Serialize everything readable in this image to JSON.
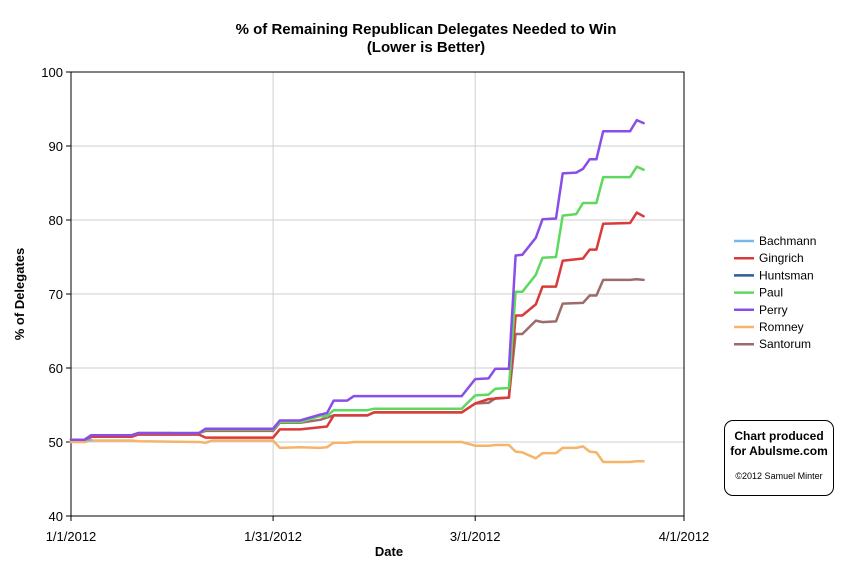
{
  "chart_data": {
    "type": "line",
    "title": "% of Remaining Republican Delegates Needed to Win",
    "subtitle": "(Lower is Better)",
    "xlabel": "Date",
    "ylabel": "% of Delegates",
    "xlim": [
      "2012-01-01",
      "2012-04-01"
    ],
    "ylim": [
      40,
      100
    ],
    "xticks": [
      "1/1/2012",
      "1/31/2012",
      "3/1/2012",
      "4/1/2012"
    ],
    "yticks": [
      40,
      50,
      60,
      70,
      80,
      90,
      100
    ],
    "grid": "vertical and horizontal at major ticks",
    "legend_position": "right",
    "series": [
      {
        "name": "Bachmann",
        "color": "#7cb7e8",
        "points": [
          [
            "2012-01-01",
            50.3
          ],
          [
            "2012-01-04",
            50.3
          ]
        ]
      },
      {
        "name": "Gingrich",
        "color": "#d93a3a",
        "points": [
          [
            "2012-01-01",
            50.3
          ],
          [
            "2012-01-03",
            50.3
          ],
          [
            "2012-01-04",
            50.7
          ],
          [
            "2012-01-10",
            50.7
          ],
          [
            "2012-01-11",
            51.0
          ],
          [
            "2012-01-20",
            51.0
          ],
          [
            "2012-01-21",
            50.6
          ],
          [
            "2012-01-31",
            50.6
          ],
          [
            "2012-02-01",
            51.7
          ],
          [
            "2012-02-04",
            51.7
          ],
          [
            "2012-02-07",
            52.0
          ],
          [
            "2012-02-08",
            52.1
          ],
          [
            "2012-02-09",
            53.6
          ],
          [
            "2012-02-14",
            53.6
          ],
          [
            "2012-02-15",
            54.0
          ],
          [
            "2012-02-28",
            54.0
          ],
          [
            "2012-03-01",
            55.2
          ],
          [
            "2012-03-03",
            55.8
          ],
          [
            "2012-03-06",
            56.0
          ],
          [
            "2012-03-07",
            67.1
          ],
          [
            "2012-03-08",
            67.1
          ],
          [
            "2012-03-10",
            68.6
          ],
          [
            "2012-03-11",
            71.0
          ],
          [
            "2012-03-13",
            71.0
          ],
          [
            "2012-03-14",
            74.5
          ],
          [
            "2012-03-17",
            74.8
          ],
          [
            "2012-03-18",
            76.0
          ],
          [
            "2012-03-19",
            76.0
          ],
          [
            "2012-03-20",
            79.5
          ],
          [
            "2012-03-24",
            79.6
          ],
          [
            "2012-03-25",
            81.0
          ],
          [
            "2012-03-26",
            80.5
          ]
        ]
      },
      {
        "name": "Huntsman",
        "color": "#2e5d8c",
        "points": [
          [
            "2012-01-01",
            50.3
          ],
          [
            "2012-01-03",
            50.3
          ],
          [
            "2012-01-04",
            50.9
          ],
          [
            "2012-01-10",
            50.9
          ],
          [
            "2012-01-11",
            51.2
          ],
          [
            "2012-01-16",
            51.2
          ]
        ]
      },
      {
        "name": "Paul",
        "color": "#5fd85f",
        "points": [
          [
            "2012-01-01",
            50.3
          ],
          [
            "2012-01-03",
            50.3
          ],
          [
            "2012-01-04",
            50.9
          ],
          [
            "2012-01-10",
            50.9
          ],
          [
            "2012-01-11",
            51.2
          ],
          [
            "2012-01-20",
            51.2
          ],
          [
            "2012-01-21",
            51.7
          ],
          [
            "2012-01-31",
            51.7
          ],
          [
            "2012-02-01",
            52.7
          ],
          [
            "2012-02-04",
            52.7
          ],
          [
            "2012-02-07",
            53.5
          ],
          [
            "2012-02-08",
            53.5
          ],
          [
            "2012-02-09",
            54.3
          ],
          [
            "2012-02-14",
            54.3
          ],
          [
            "2012-02-15",
            54.5
          ],
          [
            "2012-02-28",
            54.5
          ],
          [
            "2012-03-01",
            56.3
          ],
          [
            "2012-03-03",
            56.4
          ],
          [
            "2012-03-04",
            57.2
          ],
          [
            "2012-03-06",
            57.3
          ],
          [
            "2012-03-07",
            70.3
          ],
          [
            "2012-03-08",
            70.3
          ],
          [
            "2012-03-10",
            72.6
          ],
          [
            "2012-03-11",
            74.9
          ],
          [
            "2012-03-13",
            75.0
          ],
          [
            "2012-03-14",
            80.6
          ],
          [
            "2012-03-16",
            80.8
          ],
          [
            "2012-03-17",
            82.3
          ],
          [
            "2012-03-19",
            82.3
          ],
          [
            "2012-03-20",
            85.8
          ],
          [
            "2012-03-24",
            85.8
          ],
          [
            "2012-03-25",
            87.2
          ],
          [
            "2012-03-26",
            86.8
          ]
        ]
      },
      {
        "name": "Perry",
        "color": "#8a4ee8",
        "points": [
          [
            "2012-01-01",
            50.3
          ],
          [
            "2012-01-03",
            50.3
          ],
          [
            "2012-01-04",
            50.9
          ],
          [
            "2012-01-10",
            50.9
          ],
          [
            "2012-01-11",
            51.2
          ],
          [
            "2012-01-20",
            51.2
          ],
          [
            "2012-01-21",
            51.8
          ],
          [
            "2012-01-31",
            51.8
          ],
          [
            "2012-02-01",
            52.9
          ],
          [
            "2012-02-04",
            52.9
          ],
          [
            "2012-02-07",
            53.7
          ],
          [
            "2012-02-08",
            53.9
          ],
          [
            "2012-02-09",
            55.6
          ],
          [
            "2012-02-11",
            55.6
          ],
          [
            "2012-02-12",
            56.2
          ],
          [
            "2012-02-28",
            56.2
          ],
          [
            "2012-03-01",
            58.5
          ],
          [
            "2012-03-03",
            58.6
          ],
          [
            "2012-03-04",
            59.9
          ],
          [
            "2012-03-06",
            59.9
          ],
          [
            "2012-03-07",
            75.2
          ],
          [
            "2012-03-08",
            75.3
          ],
          [
            "2012-03-10",
            77.6
          ],
          [
            "2012-03-11",
            80.1
          ],
          [
            "2012-03-13",
            80.2
          ],
          [
            "2012-03-14",
            86.3
          ],
          [
            "2012-03-16",
            86.4
          ],
          [
            "2012-03-17",
            86.9
          ],
          [
            "2012-03-18",
            88.2
          ],
          [
            "2012-03-19",
            88.2
          ],
          [
            "2012-03-20",
            92.0
          ],
          [
            "2012-03-24",
            92.0
          ],
          [
            "2012-03-25",
            93.5
          ],
          [
            "2012-03-26",
            93.1
          ]
        ]
      },
      {
        "name": "Romney",
        "color": "#f5b46a",
        "points": [
          [
            "2012-01-01",
            50.0
          ],
          [
            "2012-01-03",
            50.0
          ],
          [
            "2012-01-04",
            50.2
          ],
          [
            "2012-01-10",
            50.2
          ],
          [
            "2012-01-11",
            50.1
          ],
          [
            "2012-01-20",
            50.0
          ],
          [
            "2012-01-21",
            49.9
          ],
          [
            "2012-01-22",
            50.2
          ],
          [
            "2012-01-31",
            50.2
          ],
          [
            "2012-02-01",
            49.2
          ],
          [
            "2012-02-04",
            49.3
          ],
          [
            "2012-02-07",
            49.2
          ],
          [
            "2012-02-08",
            49.3
          ],
          [
            "2012-02-09",
            49.9
          ],
          [
            "2012-02-11",
            49.9
          ],
          [
            "2012-02-12",
            50.0
          ],
          [
            "2012-02-28",
            50.0
          ],
          [
            "2012-03-01",
            49.5
          ],
          [
            "2012-03-03",
            49.5
          ],
          [
            "2012-03-04",
            49.6
          ],
          [
            "2012-03-06",
            49.6
          ],
          [
            "2012-03-07",
            48.7
          ],
          [
            "2012-03-08",
            48.6
          ],
          [
            "2012-03-10",
            47.8
          ],
          [
            "2012-03-11",
            48.5
          ],
          [
            "2012-03-13",
            48.5
          ],
          [
            "2012-03-14",
            49.2
          ],
          [
            "2012-03-16",
            49.2
          ],
          [
            "2012-03-17",
            49.4
          ],
          [
            "2012-03-18",
            48.7
          ],
          [
            "2012-03-19",
            48.6
          ],
          [
            "2012-03-20",
            47.3
          ],
          [
            "2012-03-24",
            47.3
          ],
          [
            "2012-03-25",
            47.4
          ],
          [
            "2012-03-26",
            47.4
          ]
        ]
      },
      {
        "name": "Santorum",
        "color": "#9e6b6b",
        "points": [
          [
            "2012-01-01",
            50.3
          ],
          [
            "2012-01-03",
            50.3
          ],
          [
            "2012-01-04",
            50.9
          ],
          [
            "2012-01-10",
            50.9
          ],
          [
            "2012-01-11",
            51.2
          ],
          [
            "2012-01-20",
            51.2
          ],
          [
            "2012-01-21",
            51.5
          ],
          [
            "2012-01-31",
            51.5
          ],
          [
            "2012-02-01",
            52.6
          ],
          [
            "2012-02-04",
            52.6
          ],
          [
            "2012-02-07",
            53.0
          ],
          [
            "2012-02-08",
            53.3
          ],
          [
            "2012-02-09",
            53.6
          ],
          [
            "2012-02-14",
            53.6
          ],
          [
            "2012-02-15",
            54.0
          ],
          [
            "2012-02-28",
            54.0
          ],
          [
            "2012-03-01",
            55.2
          ],
          [
            "2012-03-03",
            55.3
          ],
          [
            "2012-03-04",
            55.9
          ],
          [
            "2012-03-06",
            56.0
          ],
          [
            "2012-03-07",
            64.6
          ],
          [
            "2012-03-08",
            64.6
          ],
          [
            "2012-03-10",
            66.4
          ],
          [
            "2012-03-11",
            66.2
          ],
          [
            "2012-03-13",
            66.3
          ],
          [
            "2012-03-14",
            68.7
          ],
          [
            "2012-03-17",
            68.8
          ],
          [
            "2012-03-18",
            69.8
          ],
          [
            "2012-03-19",
            69.8
          ],
          [
            "2012-03-20",
            71.9
          ],
          [
            "2012-03-24",
            71.9
          ],
          [
            "2012-03-25",
            72.0
          ],
          [
            "2012-03-26",
            71.9
          ]
        ]
      }
    ]
  },
  "credit": {
    "line1": "Chart produced",
    "line2": "for Abulsme.com",
    "copyright": "©2012 Samuel Minter"
  }
}
